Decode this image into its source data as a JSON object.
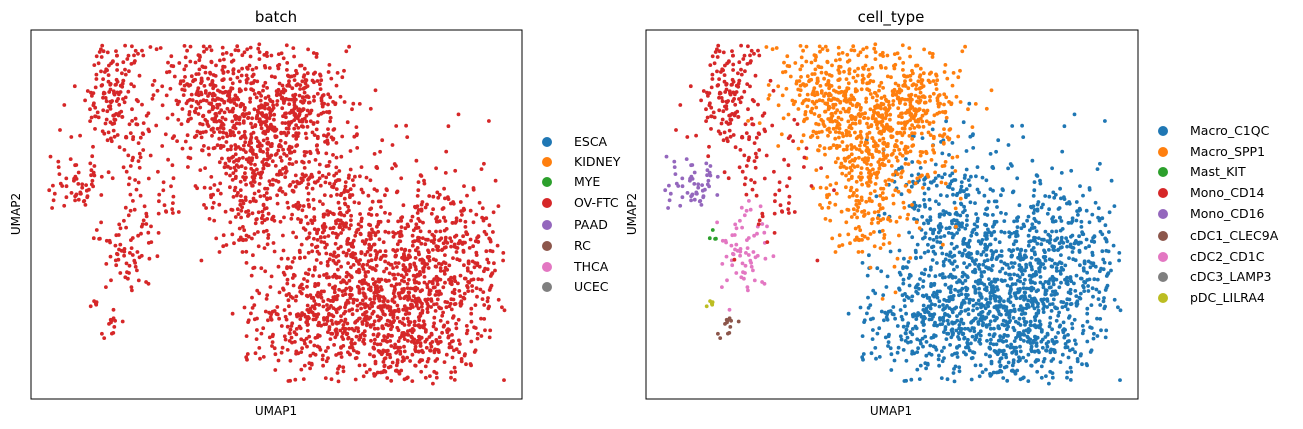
{
  "chart_data": [
    {
      "type": "scatter",
      "title": "batch",
      "xlabel": "UMAP1",
      "ylabel": "UMAP2",
      "grid": false,
      "legend": "right",
      "legend_entries": [
        {
          "name": "ESCA",
          "color": "#1f77b4"
        },
        {
          "name": "KIDNEY",
          "color": "#ff7f0e"
        },
        {
          "name": "MYE",
          "color": "#2ca02c"
        },
        {
          "name": "OV-FTC",
          "color": "#d62728"
        },
        {
          "name": "PAAD",
          "color": "#9467bd"
        },
        {
          "name": "RC",
          "color": "#8c564b"
        },
        {
          "name": "THCA",
          "color": "#e377c2"
        },
        {
          "name": "UCEC",
          "color": "#7f7f7f"
        }
      ]
    },
    {
      "type": "scatter",
      "title": "cell_type",
      "xlabel": "UMAP1",
      "ylabel": "UMAP2",
      "grid": false,
      "legend": "right",
      "legend_entries": [
        {
          "name": "Macro_C1QC",
          "color": "#1f77b4"
        },
        {
          "name": "Macro_SPP1",
          "color": "#ff7f0e"
        },
        {
          "name": "Mast_KIT",
          "color": "#2ca02c"
        },
        {
          "name": "Mono_CD14",
          "color": "#d62728"
        },
        {
          "name": "Mono_CD16",
          "color": "#9467bd"
        },
        {
          "name": "cDC1_CLEC9A",
          "color": "#8c564b"
        },
        {
          "name": "cDC2_CD1C",
          "color": "#e377c2"
        },
        {
          "name": "cDC3_LAMP3",
          "color": "#7f7f7f"
        },
        {
          "name": "pDC_LILRA4",
          "color": "#bcbd22"
        }
      ]
    }
  ]
}
